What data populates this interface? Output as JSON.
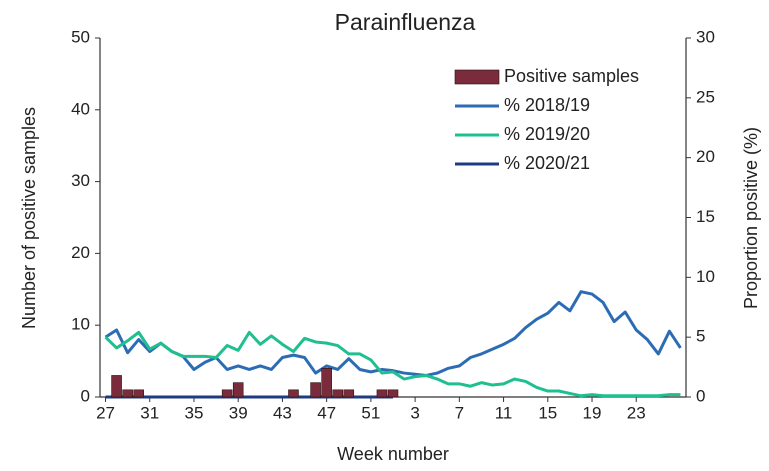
{
  "chart_data": {
    "type": "combo",
    "title": "Parainfluenza",
    "x_label": "Week number",
    "y_label": "Number of positive samples",
    "y2_label": "Proportion positive (%)",
    "categories": [
      "27",
      null,
      null,
      null,
      "31",
      null,
      null,
      null,
      "35",
      null,
      null,
      null,
      "39",
      null,
      null,
      null,
      "43",
      null,
      null,
      null,
      "47",
      null,
      null,
      null,
      "51",
      null,
      null,
      null,
      "3",
      null,
      null,
      null,
      "7",
      null,
      null,
      null,
      "11",
      null,
      null,
      null,
      "15",
      null,
      null,
      null,
      "19",
      null,
      null,
      null,
      "23",
      null,
      null,
      null,
      null
    ],
    "ylim": [
      0,
      50
    ],
    "yticks": [
      0,
      10,
      20,
      30,
      40,
      50
    ],
    "y2lim": [
      0,
      30
    ],
    "y2ticks": [
      0,
      5,
      10,
      15,
      20,
      25,
      30
    ],
    "legend": "upper right",
    "series": [
      {
        "name": "Positive samples",
        "type": "bar",
        "color": "#7b2c3c",
        "axis": "y",
        "values": [
          0,
          3,
          1,
          1,
          0,
          0,
          0,
          0,
          0,
          0,
          0,
          1,
          2,
          0,
          0,
          0,
          0,
          1,
          0,
          2,
          4,
          1,
          1,
          0,
          0,
          1,
          1,
          null,
          null,
          null,
          null,
          null,
          null,
          null,
          null,
          null,
          null,
          null,
          null,
          null,
          null,
          null,
          null,
          null,
          null,
          null,
          null,
          null,
          null,
          null,
          null,
          null,
          null
        ]
      },
      {
        "name": "% 2018/19",
        "type": "line",
        "color": "#2b6cb5",
        "axis": "y2",
        "values": [
          5.0,
          5.6,
          3.7,
          4.8,
          3.8,
          4.5,
          3.8,
          3.4,
          2.3,
          2.9,
          3.3,
          2.3,
          2.6,
          2.3,
          2.6,
          2.3,
          3.3,
          3.5,
          3.3,
          2.0,
          2.6,
          2.3,
          3.2,
          2.3,
          2.1,
          2.3,
          2.2,
          2.0,
          1.9,
          1.8,
          2.0,
          2.4,
          2.6,
          3.3,
          3.6,
          4.0,
          4.4,
          4.9,
          5.8,
          6.5,
          7.0,
          7.9,
          7.2,
          8.8,
          8.6,
          7.9,
          6.3,
          7.1,
          5.6,
          4.8,
          3.6,
          5.5,
          4.1
        ]
      },
      {
        "name": "% 2019/20",
        "type": "line",
        "color": "#1fbf8f",
        "axis": "y2",
        "values": [
          5.0,
          4.1,
          4.7,
          5.4,
          4.0,
          4.5,
          3.8,
          3.4,
          3.4,
          3.4,
          3.3,
          4.3,
          3.9,
          5.4,
          4.4,
          5.1,
          4.4,
          3.8,
          4.9,
          4.6,
          4.5,
          4.3,
          3.6,
          3.6,
          3.1,
          2.0,
          2.1,
          1.5,
          1.7,
          1.8,
          1.5,
          1.1,
          1.1,
          0.9,
          1.2,
          1.0,
          1.1,
          1.5,
          1.3,
          0.8,
          0.5,
          0.5,
          0.3,
          0.1,
          0.2,
          0.1,
          0.1,
          0.1,
          0.1,
          0.1,
          0.1,
          0.2,
          0.2
        ]
      },
      {
        "name": "% 2020/21",
        "type": "line",
        "color": "#1f3b80",
        "axis": "y2",
        "values": [
          0,
          0,
          0,
          0,
          0,
          0,
          0,
          0,
          0,
          0,
          0,
          0,
          0,
          0,
          0,
          0,
          0,
          0,
          0,
          0,
          0,
          0,
          0,
          0,
          0,
          0,
          0,
          null,
          null,
          null,
          null,
          null,
          null,
          null,
          null,
          null,
          null,
          null,
          null,
          null,
          null,
          null,
          null,
          null,
          null,
          null,
          null,
          null,
          null,
          null,
          null,
          null,
          null
        ]
      }
    ]
  }
}
